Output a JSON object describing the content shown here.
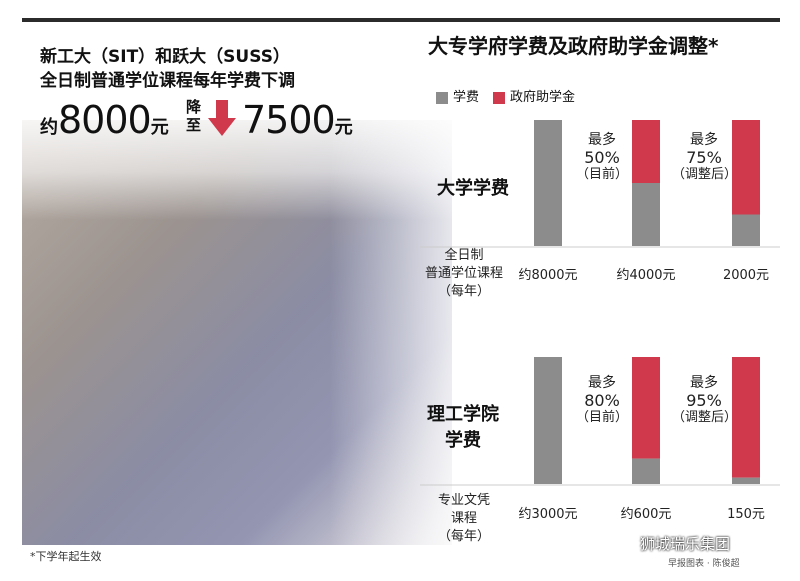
{
  "header": {
    "line1": "新工大（SIT）和跃大（SUSS）",
    "line2": "全日制普通学位课程每年学费下调",
    "old_prefix": "约",
    "old_value": "8000",
    "old_unit": "元",
    "drop_label": "降至",
    "new_value": "7500",
    "new_unit": "元"
  },
  "chart_title": "大专学府学费及政府助学金调整*",
  "legend": [
    {
      "name": "学费",
      "color": "#8c8c8c"
    },
    {
      "name": "政府助学金",
      "color": "#d0394b"
    }
  ],
  "colors": {
    "fee": "#8c8c8c",
    "grant": "#d0394b"
  },
  "rows": [
    {
      "label": "大学学费",
      "category": [
        "全日制",
        "普通学位课程",
        "（每年）"
      ],
      "bars": [
        {
          "fee_share": 1.0,
          "grant_share": 0.0,
          "value_label": "约8000元"
        },
        {
          "fee_share": 0.5,
          "grant_share": 0.5,
          "value_label": "约4000元",
          "note": [
            "最多",
            "50%",
            "（目前）"
          ]
        },
        {
          "fee_share": 0.25,
          "grant_share": 0.75,
          "value_label": "2000元",
          "note": [
            "最多",
            "75%",
            "（调整后）"
          ]
        }
      ]
    },
    {
      "label": "理工学院学费",
      "label_lines": [
        "理工学院",
        "学费"
      ],
      "category": [
        "专业文凭",
        "课程",
        "（每年）"
      ],
      "bars": [
        {
          "fee_share": 1.0,
          "grant_share": 0.0,
          "value_label": "约3000元"
        },
        {
          "fee_share": 0.2,
          "grant_share": 0.8,
          "value_label": "约600元",
          "note": [
            "最多",
            "80%",
            "（目前）"
          ]
        },
        {
          "fee_share": 0.05,
          "grant_share": 0.95,
          "value_label": "150元",
          "note": [
            "最多",
            "95%",
            "（调整后）"
          ]
        }
      ]
    }
  ],
  "chart_data": {
    "type": "bar",
    "stacked": true,
    "title": "大专学府学费及政府助学金调整*",
    "groups": [
      "大学学费",
      "理工学院学费"
    ],
    "categories": [
      "约8000元",
      "约4000元",
      "2000元",
      "约3000元",
      "约600元",
      "150元"
    ],
    "series": [
      {
        "name": "学费",
        "values": [
          100,
          50,
          25,
          100,
          20,
          5
        ]
      },
      {
        "name": "政府助学金",
        "values": [
          0,
          50,
          75,
          0,
          80,
          95
        ]
      }
    ],
    "ylim": [
      0,
      100
    ],
    "grid": false,
    "legend": "top-left"
  },
  "footnote": "*下学年起生效",
  "credit": "早报图表 · 陈俊超",
  "watermark": "狮城瑞乐集团"
}
